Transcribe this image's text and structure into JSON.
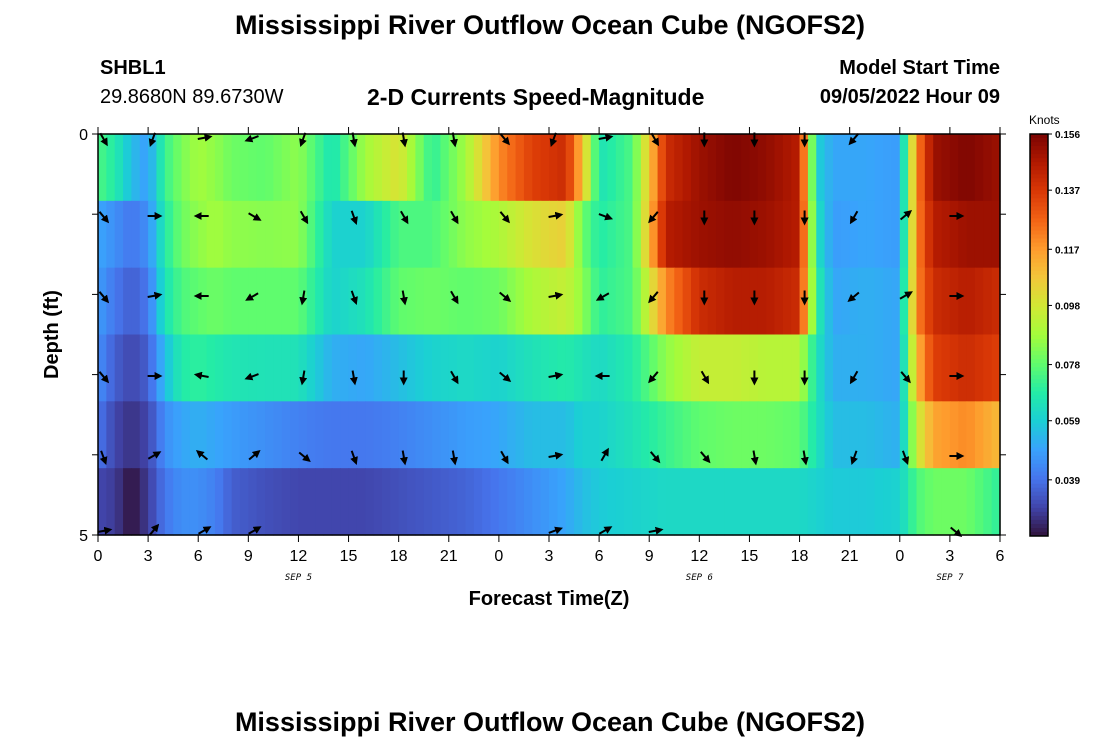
{
  "header": {
    "title": "Mississippi River Outflow Ocean Cube (NGOFS2)",
    "station": "SHBL1",
    "coordinates": "29.8680N  89.6730W",
    "subtitle": "2-D Currents Speed-Magnitude",
    "model_start_label": "Model Start Time",
    "model_start_value": "09/05/2022 Hour 09"
  },
  "footer": {
    "title": "Mississippi River Outflow Ocean Cube (NGOFS2)"
  },
  "colors": {
    "colormap": [
      "#30123b",
      "#4145ab",
      "#4675ed",
      "#39a2fc",
      "#1bcfd4",
      "#24eca6",
      "#61fc6c",
      "#a4fc3b",
      "#d1e834",
      "#f3c63a",
      "#fe9b2d",
      "#f36315",
      "#d93806",
      "#b11901",
      "#7a0402"
    ],
    "arrow": "#000000",
    "frame": "#000000"
  },
  "chart_data": {
    "type": "heatmap",
    "title": "2-D Currents Speed-Magnitude",
    "xlabel": "Forecast Time(Z)",
    "ylabel": "Depth (ft)",
    "x_ticks": [
      "0",
      "3",
      "6",
      "9",
      "12",
      "15",
      "18",
      "21",
      "0",
      "3",
      "6",
      "9",
      "12",
      "15",
      "18",
      "21",
      "0",
      "3",
      "6"
    ],
    "date_labels": [
      {
        "label": "SEP 5",
        "at_tick_index": 4
      },
      {
        "label": "SEP 6",
        "at_tick_index": 12
      },
      {
        "label": "SEP 7",
        "at_tick_index": 17
      }
    ],
    "y_ticks": [
      "0",
      "5"
    ],
    "ylim": [
      0,
      5
    ],
    "x_range_hours": [
      0,
      54
    ],
    "colorbar": {
      "label": "Knots",
      "ticks": [
        "0.156",
        "0.137",
        "0.117",
        "0.098",
        "0.078",
        "0.059",
        "0.039"
      ],
      "range": [
        0.02,
        0.156
      ]
    },
    "speed_keyframes": {
      "hours": [
        0,
        1,
        2,
        3,
        4,
        5,
        6,
        7,
        8,
        10,
        12,
        14,
        16,
        18,
        20,
        22,
        24,
        26,
        28,
        29,
        30,
        32,
        34,
        36,
        38,
        40,
        42,
        43,
        44,
        46,
        48,
        49,
        50,
        52,
        54
      ],
      "layers": [
        [
          0.075,
          0.068,
          0.055,
          0.048,
          0.072,
          0.082,
          0.088,
          0.085,
          0.08,
          0.078,
          0.085,
          0.065,
          0.088,
          0.1,
          0.07,
          0.088,
          0.12,
          0.135,
          0.14,
          0.11,
          0.065,
          0.075,
          0.14,
          0.15,
          0.155,
          0.152,
          0.145,
          0.06,
          0.05,
          0.05,
          0.048,
          0.12,
          0.15,
          0.155,
          0.15
        ],
        [
          0.05,
          0.045,
          0.04,
          0.045,
          0.068,
          0.08,
          0.085,
          0.088,
          0.085,
          0.084,
          0.085,
          0.06,
          0.06,
          0.075,
          0.075,
          0.085,
          0.09,
          0.1,
          0.105,
          0.08,
          0.068,
          0.075,
          0.145,
          0.15,
          0.152,
          0.15,
          0.145,
          0.065,
          0.048,
          0.05,
          0.048,
          0.12,
          0.145,
          0.15,
          0.15
        ],
        [
          0.048,
          0.04,
          0.035,
          0.04,
          0.065,
          0.075,
          0.078,
          0.08,
          0.078,
          0.078,
          0.078,
          0.06,
          0.065,
          0.078,
          0.08,
          0.078,
          0.08,
          0.09,
          0.095,
          0.085,
          0.07,
          0.075,
          0.12,
          0.14,
          0.145,
          0.145,
          0.14,
          0.07,
          0.05,
          0.052,
          0.05,
          0.12,
          0.14,
          0.145,
          0.14
        ],
        [
          0.045,
          0.035,
          0.03,
          0.035,
          0.055,
          0.068,
          0.07,
          0.068,
          0.066,
          0.065,
          0.065,
          0.052,
          0.05,
          0.055,
          0.06,
          0.062,
          0.06,
          0.065,
          0.068,
          0.065,
          0.062,
          0.068,
          0.085,
          0.095,
          0.095,
          0.092,
          0.092,
          0.065,
          0.052,
          0.052,
          0.05,
          0.11,
          0.135,
          0.14,
          0.135
        ],
        [
          0.04,
          0.03,
          0.026,
          0.03,
          0.045,
          0.05,
          0.052,
          0.05,
          0.048,
          0.045,
          0.042,
          0.04,
          0.04,
          0.042,
          0.045,
          0.048,
          0.05,
          0.055,
          0.055,
          0.06,
          0.06,
          0.065,
          0.072,
          0.078,
          0.08,
          0.08,
          0.078,
          0.065,
          0.055,
          0.055,
          0.052,
          0.095,
          0.115,
          0.12,
          0.11
        ],
        [
          0.03,
          0.028,
          0.02,
          0.028,
          0.04,
          0.045,
          0.045,
          0.042,
          0.035,
          0.032,
          0.03,
          0.03,
          0.03,
          0.032,
          0.034,
          0.036,
          0.04,
          0.045,
          0.05,
          0.055,
          0.058,
          0.06,
          0.062,
          0.062,
          0.062,
          0.062,
          0.062,
          0.06,
          0.058,
          0.058,
          0.06,
          0.075,
          0.08,
          0.08,
          0.07
        ]
      ]
    },
    "arrow_hours": [
      0,
      3,
      6,
      9,
      12,
      15,
      18,
      21,
      24,
      27,
      30,
      33,
      36,
      39,
      42,
      45,
      48,
      51
    ],
    "arrow_rows": [
      {
        "depth_ft": 0,
        "directions_deg": [
          150,
          200,
          80,
          250,
          200,
          170,
          170,
          170,
          140,
          200,
          80,
          150,
          180,
          180,
          180,
          220,
          null,
          null
        ]
      },
      {
        "depth_ft": 1,
        "directions_deg": [
          140,
          90,
          270,
          120,
          150,
          160,
          150,
          150,
          140,
          80,
          110,
          220,
          180,
          180,
          180,
          210,
          50,
          90
        ]
      },
      {
        "depth_ft": 2,
        "directions_deg": [
          140,
          80,
          270,
          240,
          190,
          160,
          170,
          150,
          130,
          80,
          240,
          220,
          180,
          180,
          180,
          230,
          60,
          90
        ]
      },
      {
        "depth_ft": 3,
        "directions_deg": [
          140,
          90,
          280,
          250,
          190,
          170,
          180,
          150,
          130,
          80,
          270,
          220,
          150,
          180,
          180,
          210,
          140,
          90
        ]
      },
      {
        "depth_ft": 4,
        "directions_deg": [
          160,
          60,
          310,
          50,
          130,
          160,
          170,
          170,
          150,
          80,
          30,
          140,
          140,
          170,
          170,
          200,
          160,
          90
        ]
      },
      {
        "depth_ft": 5,
        "directions_deg": [
          80,
          40,
          60,
          60,
          null,
          null,
          null,
          null,
          null,
          70,
          60,
          80,
          null,
          null,
          null,
          null,
          null,
          130
        ]
      }
    ]
  }
}
